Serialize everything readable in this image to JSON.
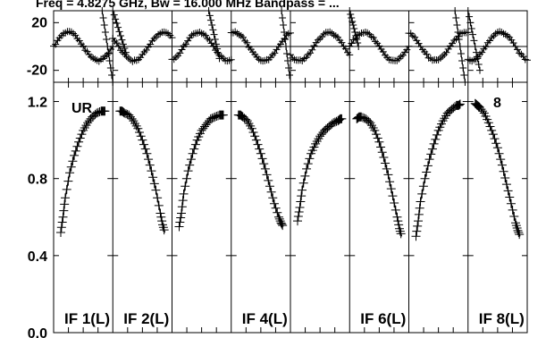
{
  "title": "Freq = 4.8275 GHz, Bw = 16.000 MHz   Bandpass = ...",
  "panel_tag": "UR",
  "panel_number": "8",
  "colors": {
    "line": "#000000",
    "background": "#ffffff"
  },
  "chart_data": [
    {
      "type": "line",
      "role": "phase",
      "yticks": [
        "20",
        "-20"
      ],
      "ylim": [
        -30,
        30
      ],
      "panels": [
        {
          "if": 1,
          "phase_offset": 0.0
        },
        {
          "if": 2,
          "phase_offset": 0.4
        },
        {
          "if": 3,
          "phase_offset": 0.8
        },
        {
          "if": 4,
          "phase_offset": 0.2
        },
        {
          "if": 5,
          "phase_offset": 0.6
        },
        {
          "if": 6,
          "phase_offset": 1.0
        },
        {
          "if": 7,
          "phase_offset": 0.3
        },
        {
          "if": 8,
          "phase_offset": 0.7
        }
      ],
      "amplitude": 12,
      "steep_lines": [
        {
          "if": 1,
          "from": [
            0.82,
            30
          ],
          "to": [
            1.0,
            -30
          ]
        },
        {
          "if": 2,
          "from": [
            0.0,
            30
          ],
          "to": [
            0.22,
            -5
          ]
        },
        {
          "if": 3,
          "from": [
            0.62,
            30
          ],
          "to": [
            0.8,
            -10
          ]
        },
        {
          "if": 4,
          "from": [
            0.85,
            30
          ],
          "to": [
            1.0,
            -30
          ]
        },
        {
          "if": 6,
          "from": [
            0.0,
            30
          ],
          "to": [
            0.15,
            0
          ]
        },
        {
          "if": 7,
          "from": [
            0.78,
            30
          ],
          "to": [
            0.95,
            -30
          ]
        },
        {
          "if": 8,
          "from": [
            0.0,
            30
          ],
          "to": [
            0.2,
            -20
          ]
        }
      ]
    },
    {
      "type": "line",
      "role": "amplitude",
      "yticks": [
        "1.2",
        "0.8",
        "0.4",
        "0.0"
      ],
      "ylim": [
        0.0,
        1.3
      ],
      "series": [
        {
          "x": [
            0.0,
            0.05,
            0.1,
            0.2,
            0.3,
            0.4,
            0.5,
            0.6,
            0.7,
            0.8,
            0.9,
            0.95,
            1.0
          ],
          "y": [
            0.52,
            0.6,
            0.7,
            0.83,
            0.92,
            0.99,
            1.05,
            1.09,
            1.12,
            1.14,
            1.15,
            1.15,
            1.15
          ]
        },
        {
          "x": [
            0.0,
            0.05,
            0.1,
            0.2,
            0.3,
            0.4,
            0.5,
            0.6,
            0.7,
            0.8,
            0.9,
            0.95,
            1.0
          ],
          "y": [
            1.15,
            1.15,
            1.14,
            1.13,
            1.1,
            1.06,
            1.0,
            0.93,
            0.84,
            0.74,
            0.62,
            0.56,
            0.52
          ]
        },
        {
          "x": [
            0.0,
            0.05,
            0.1,
            0.2,
            0.3,
            0.4,
            0.5,
            0.6,
            0.7,
            0.8,
            0.9,
            0.95,
            1.0
          ],
          "y": [
            0.55,
            0.62,
            0.72,
            0.84,
            0.93,
            1.0,
            1.05,
            1.08,
            1.11,
            1.12,
            1.13,
            1.13,
            1.13
          ]
        },
        {
          "x": [
            0.0,
            0.05,
            0.1,
            0.2,
            0.3,
            0.4,
            0.5,
            0.6,
            0.7,
            0.8,
            0.9,
            0.95,
            1.0
          ],
          "y": [
            1.13,
            1.13,
            1.12,
            1.1,
            1.06,
            1.0,
            0.93,
            0.85,
            0.76,
            0.67,
            0.6,
            0.57,
            0.55
          ]
        },
        {
          "x": [
            0.0,
            0.05,
            0.1,
            0.2,
            0.3,
            0.4,
            0.5,
            0.6,
            0.7,
            0.8,
            0.9,
            0.95,
            1.0
          ],
          "y": [
            0.58,
            0.65,
            0.74,
            0.85,
            0.93,
            0.98,
            1.02,
            1.05,
            1.07,
            1.09,
            1.1,
            1.11,
            1.11
          ]
        },
        {
          "x": [
            0.0,
            0.05,
            0.1,
            0.2,
            0.3,
            0.4,
            0.5,
            0.6,
            0.7,
            0.8,
            0.9,
            0.95,
            1.0
          ],
          "y": [
            1.11,
            1.12,
            1.12,
            1.11,
            1.09,
            1.05,
            0.99,
            0.91,
            0.82,
            0.71,
            0.6,
            0.54,
            0.5
          ]
        },
        {
          "x": [
            0.0,
            0.05,
            0.1,
            0.2,
            0.3,
            0.4,
            0.5,
            0.6,
            0.7,
            0.8,
            0.9,
            0.95,
            1.0
          ],
          "y": [
            0.5,
            0.58,
            0.68,
            0.8,
            0.9,
            0.98,
            1.05,
            1.1,
            1.14,
            1.16,
            1.18,
            1.18,
            1.19
          ]
        },
        {
          "x": [
            0.0,
            0.05,
            0.1,
            0.2,
            0.3,
            0.4,
            0.5,
            0.6,
            0.7,
            0.8,
            0.9,
            0.95,
            1.0
          ],
          "y": [
            1.19,
            1.18,
            1.17,
            1.14,
            1.09,
            1.03,
            0.96,
            0.87,
            0.77,
            0.67,
            0.57,
            0.53,
            0.5
          ]
        }
      ],
      "if_labels": [
        "IF 1(L)",
        "IF 2(L)",
        "",
        "IF 4(L)",
        "",
        "IF 6(L)",
        "",
        "IF 8(L)"
      ]
    }
  ]
}
